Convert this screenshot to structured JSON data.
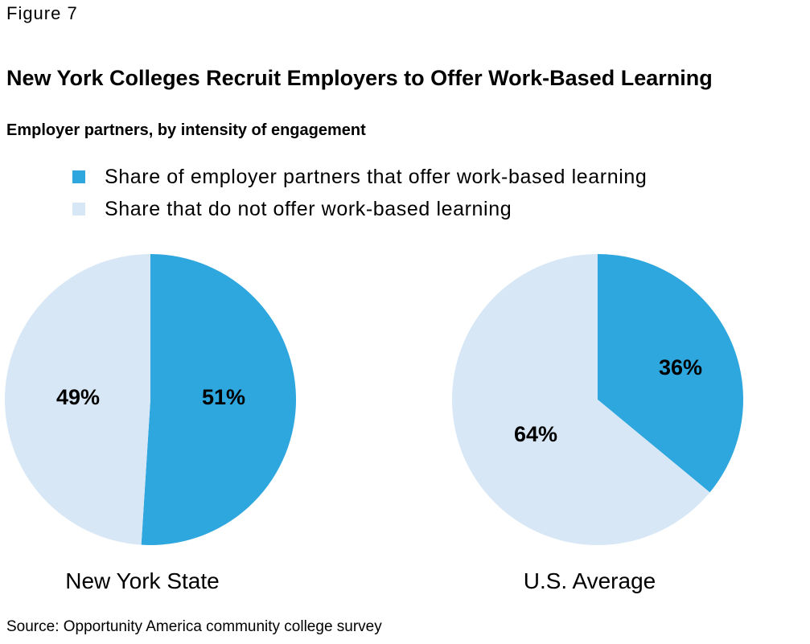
{
  "figure_label": "Figure 7",
  "source": "Source: Opportunity America community college survey",
  "colors": {
    "offer": "#2ea6de",
    "not_offer": "#d7e7f6"
  },
  "chart_data": {
    "type": "pie",
    "title": "New York Colleges Recruit Employers to Offer Work-Based Learning",
    "subtitle": "Employer partners, by intensity of engagement",
    "legend": [
      {
        "name": "Share of employer partners that offer work-based learning",
        "color": "#2ea6de"
      },
      {
        "name": "Share that do not offer work-based learning",
        "color": "#d7e7f6"
      }
    ],
    "legend_position": "top",
    "pies": [
      {
        "name": "New York State",
        "slices": [
          {
            "label": "51%",
            "value": 51,
            "color": "#2ea6de"
          },
          {
            "label": "49%",
            "value": 49,
            "color": "#d7e7f6"
          }
        ]
      },
      {
        "name": "U.S. Average",
        "slices": [
          {
            "label": "36%",
            "value": 36,
            "color": "#2ea6de"
          },
          {
            "label": "64%",
            "value": 64,
            "color": "#d7e7f6"
          }
        ]
      }
    ]
  }
}
